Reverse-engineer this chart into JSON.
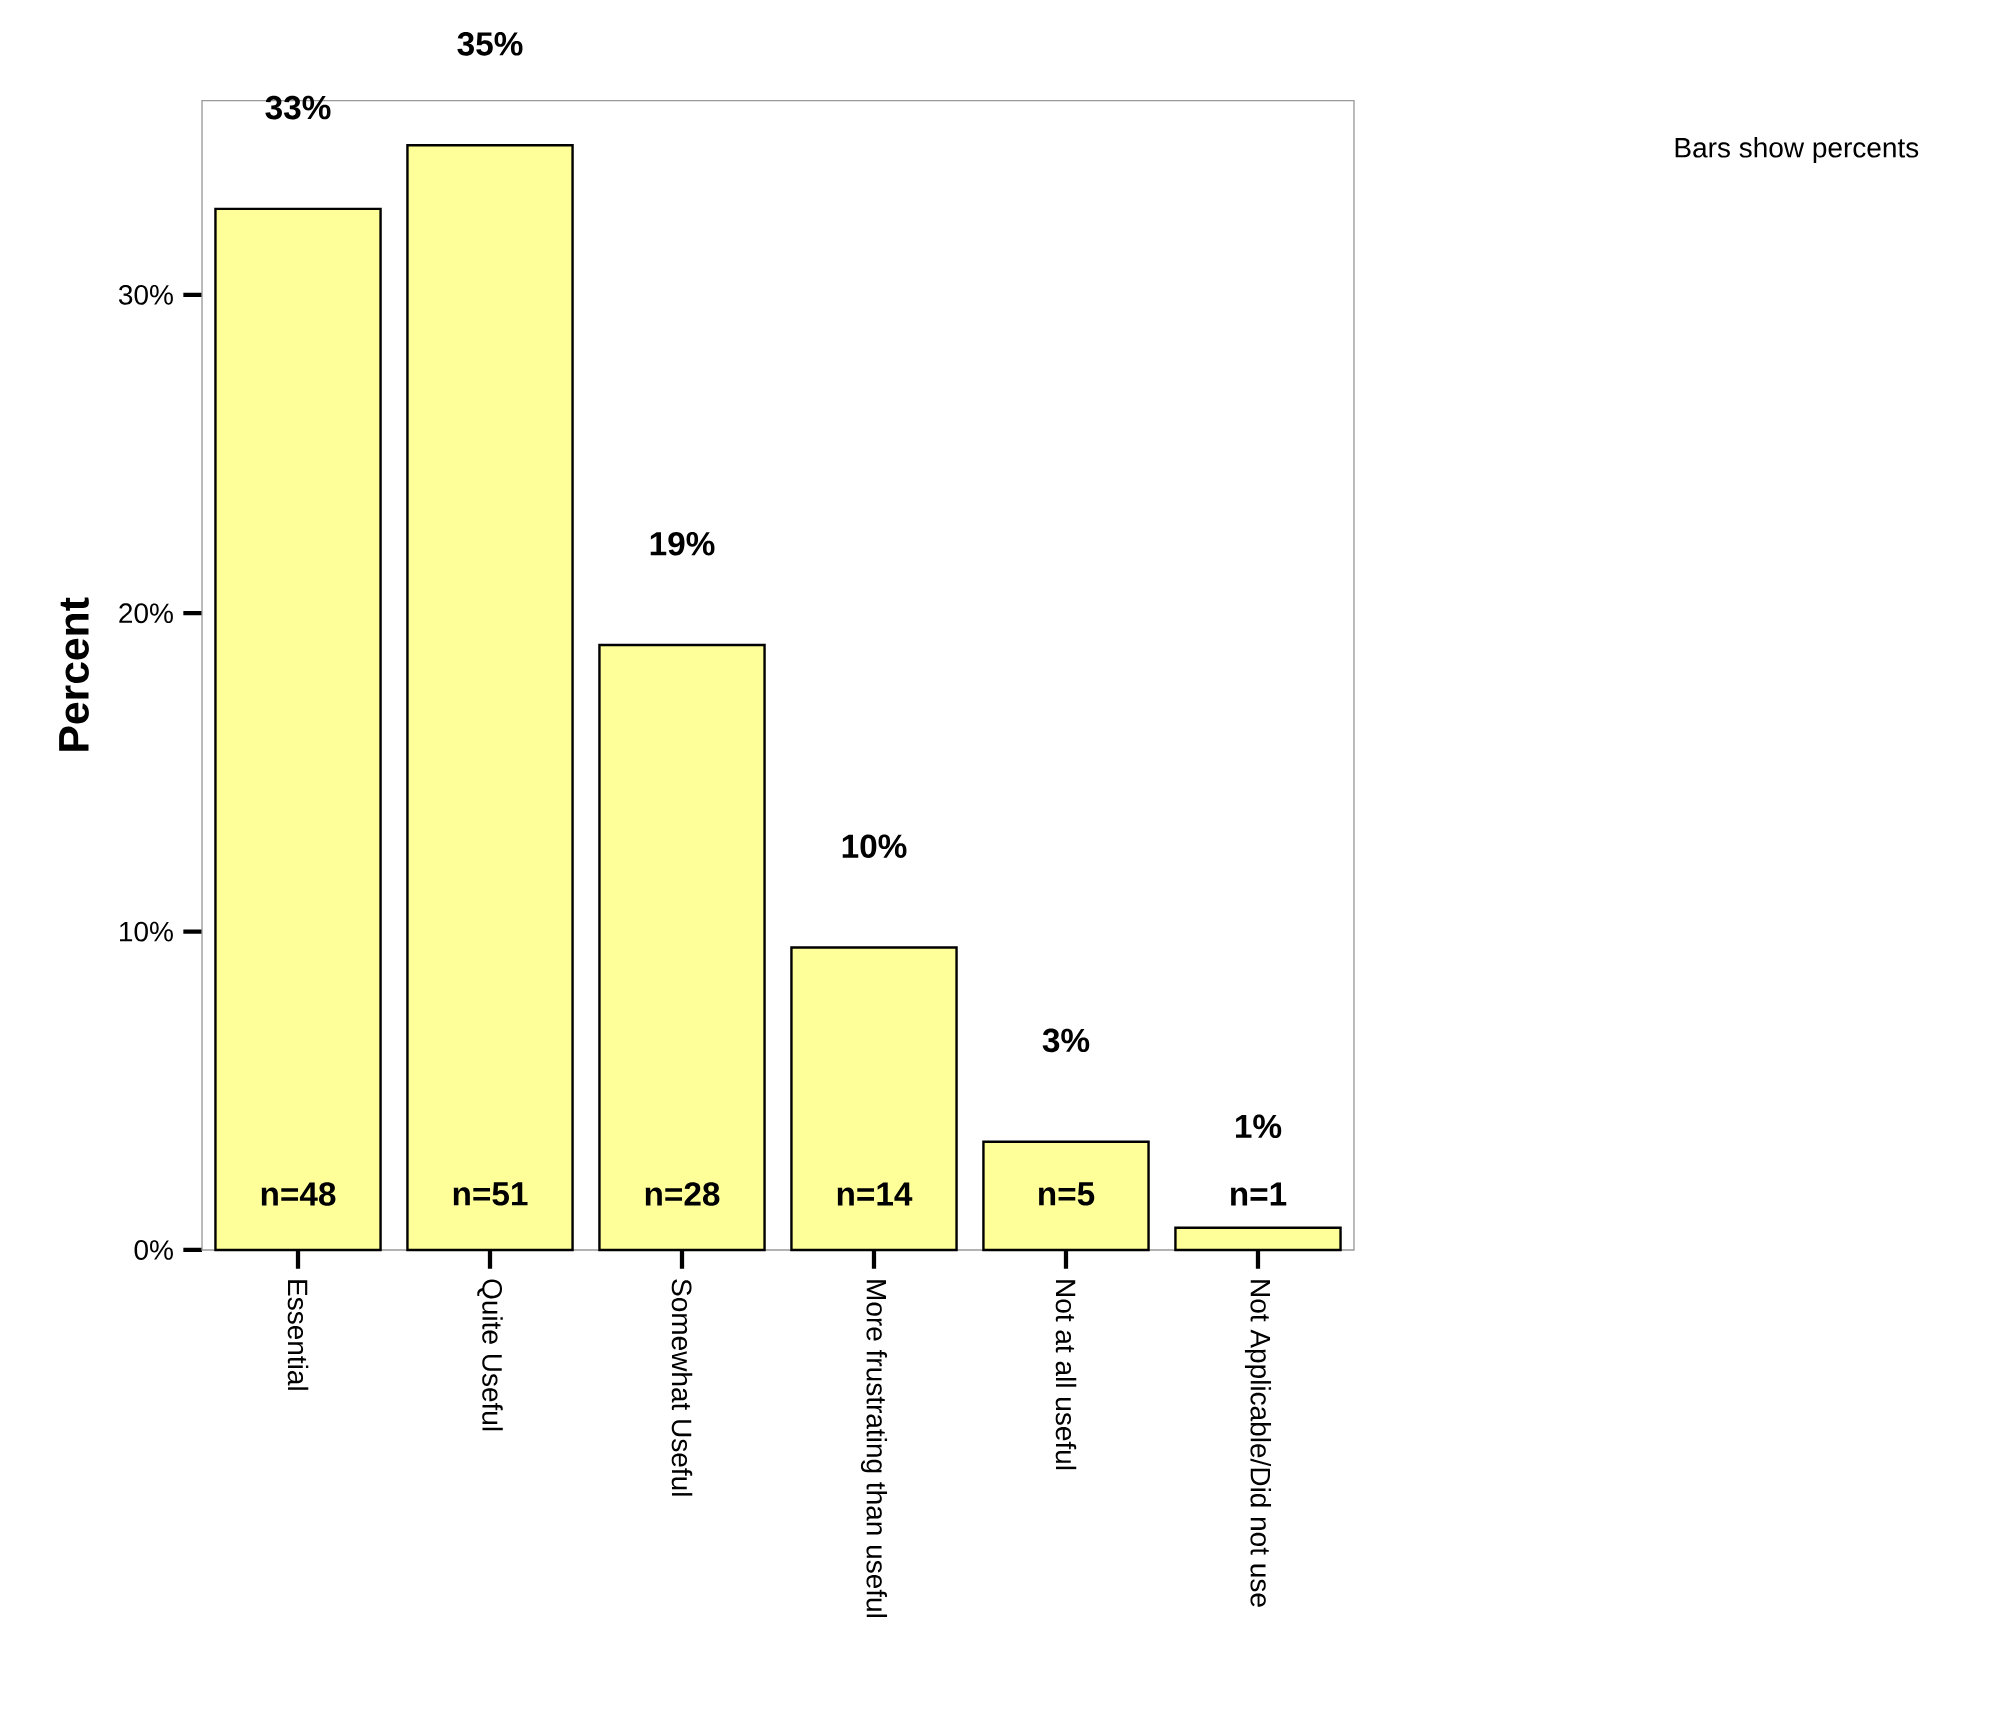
{
  "chart_data": {
    "type": "bar",
    "ylabel": "Percent",
    "categories": [
      "Essential",
      "Quite Useful",
      "Somewhat Useful",
      "More frustrating than useful",
      "Not at all useful",
      "Not Applicable/Did not use"
    ],
    "values": [
      32.7,
      34.7,
      19.0,
      9.5,
      3.4,
      0.7
    ],
    "value_labels": [
      "33%",
      "35%",
      "19%",
      "10%",
      "3%",
      "1%"
    ],
    "color": "#ffff99",
    "ylim": [
      0,
      36.1
    ],
    "yticks": [
      {
        "value": 0,
        "label": "0%"
      },
      {
        "value": 10,
        "label": "10%"
      },
      {
        "value": 20,
        "label": "20%"
      },
      {
        "value": 30,
        "label": "30%"
      }
    ],
    "grid": false,
    "annotations": [
      "n=48",
      "n=51",
      "n=28",
      "n=14",
      "n=5",
      "n=1",
      "Bars show percents"
    ]
  }
}
